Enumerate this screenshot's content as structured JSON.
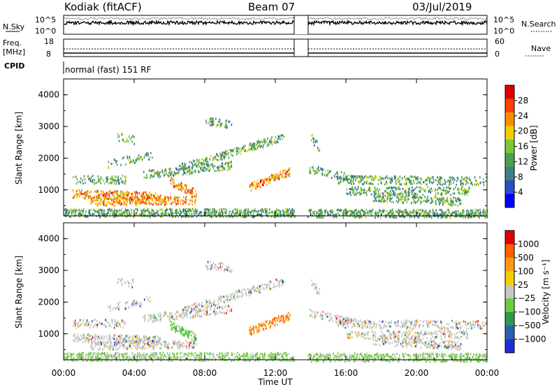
{
  "header": {
    "station": "Kodiak (fitACF)",
    "beam": "Beam 07",
    "date": "03/Jul/2019"
  },
  "top_panels": {
    "nsky_label": "N.Sky",
    "nsky_ticks": [
      "10^5",
      "10^0"
    ],
    "nsearch_label": "N.Search",
    "nsearch_ticks": [
      "10^5",
      "10^0"
    ],
    "freq_label_1": "Freq.",
    "freq_label_2": "[MHz]",
    "freq_ticks": [
      "18",
      "8"
    ],
    "nave_label": "Nave",
    "nave_ticks": [
      "60",
      "0"
    ],
    "cpid_label": "CPID",
    "cpid_text": "normal (fast) 151 RF"
  },
  "chart_data": [
    {
      "type": "heatmap",
      "panel": "power",
      "ylabel": "Slant Range [km]",
      "y_ticks": [
        "4000",
        "3000",
        "2000",
        "1000"
      ],
      "y_tick_values": [
        4000,
        3000,
        2000,
        1000
      ],
      "ylim": [
        180,
        4500
      ],
      "x_range_hours": [
        0,
        24
      ],
      "data_gap_hours": [
        13.1,
        13.8
      ],
      "colorbar_label": "Power [dB]",
      "colorbar_ticks": [
        "28",
        "24",
        "20",
        "16",
        "12",
        "8",
        "4"
      ],
      "colorbar_tick_values": [
        28,
        24,
        20,
        16,
        12,
        8,
        4
      ],
      "colorbar_range": [
        0,
        32
      ],
      "colorbar_colors": [
        "#0000ff",
        "#2b4fc4",
        "#3f7f7f",
        "#4ca04c",
        "#7bc83a",
        "#f2d000",
        "#ff8c00",
        "#ff4000",
        "#e00000"
      ]
    },
    {
      "type": "heatmap",
      "panel": "velocity",
      "ylabel": "Slant Range [km]",
      "y_ticks": [
        "4000",
        "3000",
        "2000",
        "1000"
      ],
      "y_tick_values": [
        4000,
        3000,
        2000,
        1000
      ],
      "ylim": [
        180,
        4500
      ],
      "x_range_hours": [
        0,
        24
      ],
      "data_gap_hours": [
        13.1,
        13.8
      ],
      "colorbar_label": "Velocity [m s⁻¹]",
      "colorbar_ticks": [
        "1000",
        "500",
        "100",
        "25",
        "−25",
        "−100",
        "−500",
        "−1000"
      ],
      "colorbar_tick_values": [
        1000,
        500,
        100,
        25,
        -25,
        -100,
        -500,
        -1000
      ],
      "colorbar_colors": [
        "#2030d0",
        "#2a60b0",
        "#2f9a4a",
        "#6ccc3c",
        "#c8c8c8",
        "#f2d000",
        "#ff9a10",
        "#ff6000",
        "#e00000"
      ]
    }
  ],
  "x_axis": {
    "ticks": [
      "00:00",
      "04:00",
      "08:00",
      "12:00",
      "16:00",
      "20:00",
      "00:00"
    ],
    "tick_hours": [
      0,
      4,
      8,
      12,
      16,
      20,
      24
    ],
    "label": "Time UT"
  }
}
